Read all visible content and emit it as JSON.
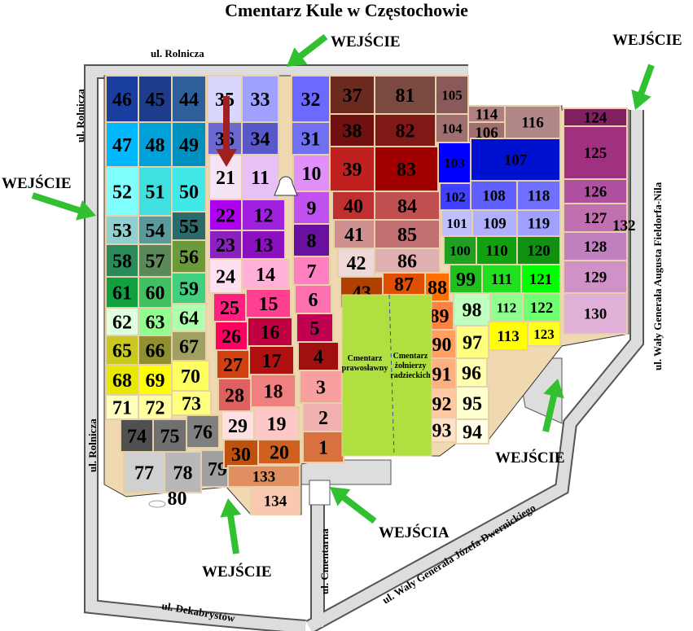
{
  "title": "Cmentarz Kule w Częstochowie",
  "streets": {
    "top": "ul. Rolnicza",
    "left_top": "ul. Rolnicza",
    "left_bottom": "ul. Rolnicza",
    "bottom": "ul. Dekabrystów",
    "cmentarna": "ul. Cmentarna",
    "dwernicki": "ul. Wały Generała Józefa Dwernickiego",
    "fieldorf": "ul. Wały Generała Augusta Fieldorfa-Nila"
  },
  "entrances": {
    "top": "WEJŚCIE",
    "top_right": "WEJŚCIE",
    "left": "WEJŚCIE",
    "bottom_left": "WEJŚCIE",
    "bottom_middle": "WEJŚCIA",
    "right": "WEJŚCIE"
  },
  "cemeteries": {
    "orthodox": [
      "Cmentarz",
      "prawosławny"
    ],
    "soviet": [
      "Cmentarz",
      "żołnierzy",
      "radzieckich"
    ],
    "color": "#b0e040"
  },
  "sectors": [
    {
      "label": "46",
      "color": "#1a3fa0"
    },
    {
      "label": "45",
      "color": "#1e3c8c"
    },
    {
      "label": "44",
      "color": "#2f5f9a"
    },
    {
      "label": "35",
      "color": "#d8d8ff"
    },
    {
      "label": "33",
      "color": "#a0a0ff"
    },
    {
      "label": "32",
      "color": "#6a6aff"
    },
    {
      "label": "47",
      "color": "#00b8ff"
    },
    {
      "label": "48",
      "color": "#00a0d8"
    },
    {
      "label": "49",
      "color": "#0090c0"
    },
    {
      "label": "36",
      "color": "#6a6ad0"
    },
    {
      "label": "34",
      "color": "#5858c8"
    },
    {
      "label": "31",
      "color": "#7070f0"
    },
    {
      "label": "52",
      "color": "#80ffff"
    },
    {
      "label": "51",
      "color": "#40e0e0"
    },
    {
      "label": "50",
      "color": "#40e8e8"
    },
    {
      "label": "21",
      "color": "#f4e4f4"
    },
    {
      "label": "11",
      "color": "#e8c0f8"
    },
    {
      "label": "10",
      "color": "#e090f8"
    },
    {
      "label": "53",
      "color": "#90d0d0"
    },
    {
      "label": "54",
      "color": "#5a9a9a"
    },
    {
      "label": "55",
      "color": "#2a6a6a"
    },
    {
      "label": "22",
      "color": "#b000f0"
    },
    {
      "label": "12",
      "color": "#a020e0"
    },
    {
      "label": "9",
      "color": "#c050f0"
    },
    {
      "label": "58",
      "color": "#2a8a5a"
    },
    {
      "label": "57",
      "color": "#5a8a5a"
    },
    {
      "label": "56",
      "color": "#6a9a3a"
    },
    {
      "label": "23",
      "color": "#8a20c0"
    },
    {
      "label": "13",
      "color": "#8a10c0"
    },
    {
      "label": "8",
      "color": "#6a10a0"
    },
    {
      "label": "61",
      "color": "#10a040"
    },
    {
      "label": "60",
      "color": "#40c060"
    },
    {
      "label": "59",
      "color": "#40d080"
    },
    {
      "label": "24",
      "color": "#ffe0f0"
    },
    {
      "label": "14",
      "color": "#ffb0d8"
    },
    {
      "label": "7",
      "color": "#ff80c0"
    },
    {
      "label": "62",
      "color": "#e0ffe0"
    },
    {
      "label": "63",
      "color": "#90ff90"
    },
    {
      "label": "64",
      "color": "#b0ffb0"
    },
    {
      "label": "25",
      "color": "#ff2080"
    },
    {
      "label": "15",
      "color": "#ff4090"
    },
    {
      "label": "6",
      "color": "#ff70b0"
    },
    {
      "label": "65",
      "color": "#c8c820"
    },
    {
      "label": "66",
      "color": "#909030"
    },
    {
      "label": "67",
      "color": "#a0a060"
    },
    {
      "label": "26",
      "color": "#ff0060"
    },
    {
      "label": "16",
      "color": "#c00040"
    },
    {
      "label": "5",
      "color": "#c00050"
    },
    {
      "label": "68",
      "color": "#e8e800"
    },
    {
      "label": "69",
      "color": "#ffff00"
    },
    {
      "label": "70",
      "color": "#ffff60"
    },
    {
      "label": "27",
      "color": "#d04010"
    },
    {
      "label": "17",
      "color": "#b01010"
    },
    {
      "label": "4",
      "color": "#a01010"
    },
    {
      "label": "71",
      "color": "#ffffc0"
    },
    {
      "label": "72",
      "color": "#ffffa0"
    },
    {
      "label": "73",
      "color": "#ffff80"
    },
    {
      "label": "28",
      "color": "#e06060"
    },
    {
      "label": "18",
      "color": "#f08080"
    },
    {
      "label": "3",
      "color": "#f8a0a0"
    },
    {
      "label": "74",
      "color": "#505050"
    },
    {
      "label": "75",
      "color": "#707070"
    },
    {
      "label": "76",
      "color": "#808080"
    },
    {
      "label": "29",
      "color": "#ffe0e0"
    },
    {
      "label": "19",
      "color": "#ffc8c8"
    },
    {
      "label": "2",
      "color": "#f0b0b0"
    },
    {
      "label": "77",
      "color": "#d0d0d0"
    },
    {
      "label": "78",
      "color": "#b8b8b8"
    },
    {
      "label": "79",
      "color": "#a0a0a0"
    },
    {
      "label": "30",
      "color": "#c05010"
    },
    {
      "label": "20",
      "color": "#d06020"
    },
    {
      "label": "1",
      "color": "#d87040"
    },
    {
      "label": "133",
      "color": "#e09060"
    },
    {
      "label": "134",
      "color": "#f8c8b0"
    },
    {
      "label": "37",
      "color": "#6a2a20"
    },
    {
      "label": "81",
      "color": "#7a4a40"
    },
    {
      "label": "105",
      "color": "#8a5a5a"
    },
    {
      "label": "38",
      "color": "#701010"
    },
    {
      "label": "82",
      "color": "#801818"
    },
    {
      "label": "104",
      "color": "#a07070"
    },
    {
      "label": "114",
      "color": "#b08080"
    },
    {
      "label": "106",
      "color": "#a07070"
    },
    {
      "label": "116",
      "color": "#b08888"
    },
    {
      "label": "39",
      "color": "#c02020"
    },
    {
      "label": "83",
      "color": "#a00000"
    },
    {
      "label": "103",
      "color": "#0000ff"
    },
    {
      "label": "107",
      "color": "#0010d0"
    },
    {
      "label": "40",
      "color": "#c03030"
    },
    {
      "label": "84",
      "color": "#c05050"
    },
    {
      "label": "102",
      "color": "#4040ff"
    },
    {
      "label": "108",
      "color": "#6060ff"
    },
    {
      "label": "118",
      "color": "#7070ff"
    },
    {
      "label": "41",
      "color": "#d09090"
    },
    {
      "label": "85",
      "color": "#c07070"
    },
    {
      "label": "101",
      "color": "#c0c0ff"
    },
    {
      "label": "109",
      "color": "#b0b0ff"
    },
    {
      "label": "119",
      "color": "#a0a0ff"
    },
    {
      "label": "42",
      "color": "#f0d8d8"
    },
    {
      "label": "86",
      "color": "#e0b0b0"
    },
    {
      "label": "100",
      "color": "#20a020"
    },
    {
      "label": "110",
      "color": "#10a010"
    },
    {
      "label": "120",
      "color": "#109010"
    },
    {
      "label": "43",
      "color": "#b04000"
    },
    {
      "label": "87",
      "color": "#e05000"
    },
    {
      "label": "88",
      "color": "#ff7000"
    },
    {
      "label": "99",
      "color": "#20c020"
    },
    {
      "label": "111",
      "color": "#20e020"
    },
    {
      "label": "121",
      "color": "#00ff00"
    },
    {
      "label": "89",
      "color": "#ff8040"
    },
    {
      "label": "98",
      "color": "#c0ffc0"
    },
    {
      "label": "112",
      "color": "#90ff90"
    },
    {
      "label": "122",
      "color": "#70ff70"
    },
    {
      "label": "90",
      "color": "#ffa060"
    },
    {
      "label": "97",
      "color": "#ffff80"
    },
    {
      "label": "113",
      "color": "#ffff00"
    },
    {
      "label": "123",
      "color": "#ffff20"
    },
    {
      "label": "91",
      "color": "#ffb080"
    },
    {
      "label": "96",
      "color": "#ffffb0"
    },
    {
      "label": "92",
      "color": "#ffc8a0"
    },
    {
      "label": "95",
      "color": "#ffffd0"
    },
    {
      "label": "93",
      "color": "#ffe0c8"
    },
    {
      "label": "94",
      "color": "#ffffe8"
    },
    {
      "label": "124",
      "color": "#802060"
    },
    {
      "label": "125",
      "color": "#a03080"
    },
    {
      "label": "126",
      "color": "#b050a0"
    },
    {
      "label": "127",
      "color": "#c070b0"
    },
    {
      "label": "128",
      "color": "#c080c0"
    },
    {
      "label": "129",
      "color": "#d090c8"
    },
    {
      "label": "130",
      "color": "#e0b0d8"
    },
    {
      "label": "80",
      "color": "#e8e8e8"
    }
  ],
  "outside_labels": {
    "132": "132"
  },
  "colors": {
    "road": "#dddddd",
    "path": "#f0d8b0",
    "arrow_green": "#30c030",
    "arrow_red": "#a02020"
  }
}
